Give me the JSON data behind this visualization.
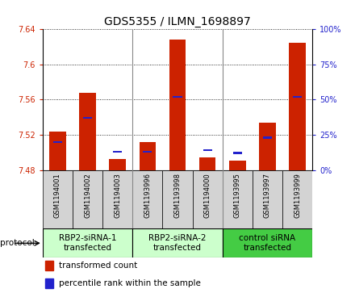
{
  "title": "GDS5355 / ILMN_1698897",
  "samples": [
    "GSM1194001",
    "GSM1194002",
    "GSM1194003",
    "GSM1193996",
    "GSM1193998",
    "GSM1194000",
    "GSM1193995",
    "GSM1193997",
    "GSM1193999"
  ],
  "red_values": [
    7.524,
    7.568,
    7.492,
    7.512,
    7.628,
    7.494,
    7.491,
    7.534,
    7.625
  ],
  "blue_values_pct": [
    20,
    37,
    13,
    13,
    52,
    14,
    12,
    23,
    52
  ],
  "ylim": [
    7.48,
    7.64
  ],
  "yticks": [
    7.48,
    7.52,
    7.56,
    7.6,
    7.64
  ],
  "right_yticks": [
    0,
    25,
    50,
    75,
    100
  ],
  "bar_width": 0.55,
  "red_color": "#cc2200",
  "blue_color": "#2222cc",
  "bar_base": 7.48,
  "groups": [
    {
      "label": "RBP2-siRNA-1\ntransfected",
      "start": 0,
      "end": 3,
      "color": "#ccffcc"
    },
    {
      "label": "RBP2-siRNA-2\ntransfected",
      "start": 3,
      "end": 6,
      "color": "#ccffcc"
    },
    {
      "label": "control siRNA\ntransfected",
      "start": 6,
      "end": 9,
      "color": "#44cc44"
    }
  ],
  "protocol_label": "protocol",
  "legend_items": [
    {
      "color": "#cc2200",
      "label": "transformed count"
    },
    {
      "color": "#2222cc",
      "label": "percentile rank within the sample"
    }
  ],
  "title_fontsize": 10,
  "tick_fontsize": 7,
  "label_fontsize": 7.5,
  "sample_fontsize": 6
}
